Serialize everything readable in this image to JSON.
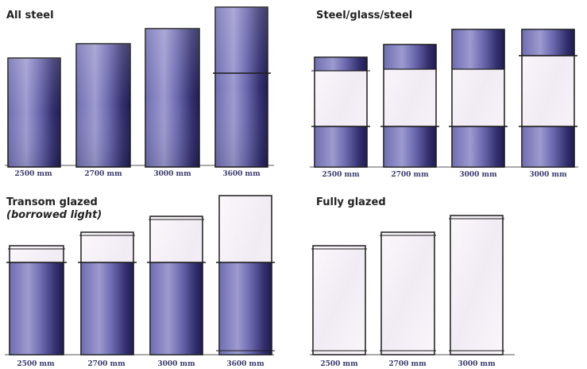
{
  "panels": [
    {
      "title": "All steel",
      "labels": [
        "2500 mm",
        "2700 mm",
        "3000 mm",
        "3600 mm"
      ]
    },
    {
      "title": "Steel/glass/steel",
      "labels": [
        "2500 mm",
        "2700 mm",
        "3000 mm",
        "3000 mm"
      ]
    },
    {
      "title": "Transom glazed",
      "subtitle": "(borrowed light)",
      "labels": [
        "2500 mm",
        "2700 mm",
        "3000 mm",
        "3600 mm"
      ]
    },
    {
      "title": "Fully glazed",
      "labels": [
        "2500 mm",
        "2700 mm",
        "3000 mm"
      ]
    }
  ],
  "colors": {
    "steel_dark": "#2e2a6e",
    "steel_mid": "#7a78b8",
    "steel_light": "#c9c6e4",
    "glass": "#f6f1f7",
    "frame": "#1c1c1c"
  }
}
